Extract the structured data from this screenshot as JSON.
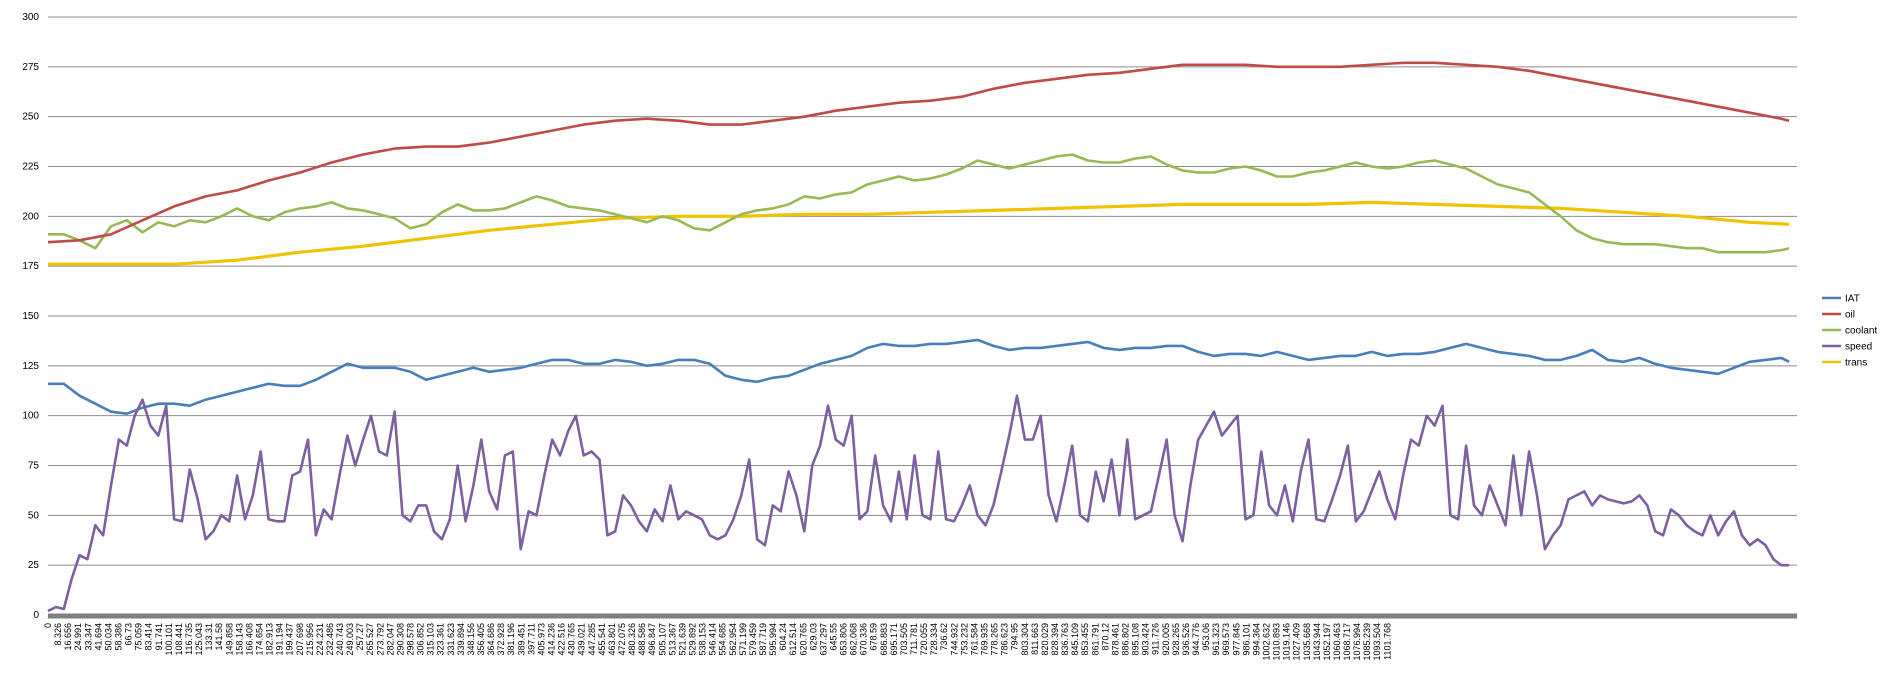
{
  "chart_data": {
    "type": "line",
    "ylim": [
      0,
      300
    ],
    "yticks": [
      "0",
      "25",
      "50",
      "75",
      "100",
      "125",
      "150",
      "175",
      "200",
      "225",
      "250",
      "275",
      "300"
    ],
    "xlim": [
      0,
      1110
    ],
    "x_tick_labels": [
      "0",
      "8.326",
      "16.656",
      "24.991",
      "33.347",
      "41.694",
      "50.034",
      "58.386",
      "66.73",
      "75.059",
      "83.414",
      "91.741",
      "100.101",
      "108.441",
      "116.735",
      "125.043",
      "133.31",
      "141.58",
      "149.858",
      "158.143",
      "166.408",
      "174.654",
      "182.913",
      "191.194",
      "199.437",
      "207.698",
      "215.956",
      "224.231",
      "232.486",
      "240.743",
      "249.003",
      "257.27",
      "265.527",
      "273.792",
      "282.047",
      "290.308",
      "298.578",
      "306.852",
      "315.103",
      "323.361",
      "331.623",
      "339.894",
      "348.156",
      "356.405",
      "364.686",
      "372.928",
      "381.196",
      "389.451",
      "397.711",
      "405.973",
      "414.236",
      "422.516",
      "430.765",
      "439.021",
      "447.285",
      "455.541",
      "463.801",
      "472.075",
      "480.326",
      "488.586",
      "496.847",
      "505.107",
      "513.367",
      "521.639",
      "529.892",
      "538.153",
      "546.414",
      "554.685",
      "562.954",
      "571.199",
      "579.459",
      "587.719",
      "595.994",
      "604.24",
      "612.514",
      "620.765",
      "629.03",
      "637.297",
      "645.55",
      "653.806",
      "662.068",
      "670.336",
      "678.59",
      "686.883",
      "695.171",
      "703.505",
      "711.781",
      "720.055",
      "728.334",
      "736.62",
      "744.932",
      "753.232",
      "761.584",
      "769.935",
      "778.265",
      "786.623",
      "794.95",
      "803.304",
      "811.663",
      "820.029",
      "828.394",
      "836.763",
      "845.109",
      "853.455",
      "861.791",
      "870.12",
      "878.461",
      "886.802",
      "895.108",
      "903.424",
      "911.726",
      "920.005",
      "928.265",
      "936.526",
      "944.776",
      "953.06",
      "961.323",
      "969.573",
      "977.845",
      "986.101",
      "994.364",
      "1002.632",
      "1010.893",
      "1019.146",
      "1027.409",
      "1035.668",
      "1043.944",
      "1052.197",
      "1060.463",
      "1068.717",
      "1076.994",
      "1085.239",
      "1093.504",
      "1101.768"
    ],
    "legend_position": "right",
    "grid": "horizontal",
    "series": [
      {
        "name": "IAT",
        "color": "#4a7ebb",
        "x": [
          0,
          10,
          20,
          30,
          40,
          50,
          60,
          70,
          80,
          90,
          100,
          110,
          120,
          130,
          140,
          150,
          160,
          170,
          180,
          190,
          200,
          210,
          220,
          230,
          240,
          250,
          260,
          270,
          280,
          290,
          300,
          310,
          320,
          330,
          340,
          350,
          360,
          370,
          380,
          390,
          400,
          410,
          420,
          430,
          440,
          450,
          460,
          470,
          480,
          490,
          500,
          510,
          520,
          530,
          540,
          550,
          560,
          570,
          580,
          590,
          600,
          610,
          620,
          630,
          640,
          650,
          660,
          670,
          680,
          690,
          700,
          710,
          720,
          730,
          740,
          750,
          760,
          770,
          780,
          790,
          800,
          810,
          820,
          830,
          840,
          850,
          860,
          870,
          880,
          890,
          900,
          910,
          920,
          930,
          940,
          950,
          960,
          970,
          980,
          990,
          1000,
          1010,
          1020,
          1030,
          1040,
          1050,
          1060,
          1070,
          1080,
          1090,
          1100,
          1105
        ],
        "values": [
          116,
          116,
          110,
          106,
          102,
          101,
          104,
          106,
          106,
          105,
          108,
          110,
          112,
          114,
          116,
          115,
          115,
          118,
          122,
          126,
          124,
          124,
          124,
          122,
          118,
          120,
          122,
          124,
          122,
          123,
          124,
          126,
          128,
          128,
          126,
          126,
          128,
          127,
          125,
          126,
          128,
          128,
          126,
          120,
          118,
          117,
          119,
          120,
          123,
          126,
          128,
          130,
          134,
          136,
          135,
          135,
          136,
          136,
          137,
          138,
          135,
          133,
          134,
          134,
          135,
          136,
          137,
          134,
          133,
          134,
          134,
          135,
          135,
          132,
          130,
          131,
          131,
          130,
          132,
          130,
          128,
          129,
          130,
          130,
          132,
          130,
          131,
          131,
          132,
          134,
          136,
          134,
          132,
          131,
          130,
          128,
          128,
          130,
          133,
          128,
          127,
          129,
          126,
          124,
          123,
          122,
          121,
          124,
          127,
          128,
          129,
          127
        ]
      },
      {
        "name": "oil",
        "color": "#be4b48",
        "x": [
          0,
          20,
          40,
          60,
          80,
          100,
          120,
          140,
          160,
          180,
          200,
          220,
          240,
          260,
          280,
          300,
          320,
          340,
          360,
          380,
          400,
          420,
          440,
          460,
          480,
          500,
          520,
          540,
          560,
          580,
          600,
          620,
          640,
          660,
          680,
          700,
          720,
          740,
          760,
          780,
          800,
          820,
          840,
          860,
          880,
          900,
          920,
          940,
          960,
          980,
          1000,
          1020,
          1040,
          1060,
          1080,
          1100,
          1105
        ],
        "values": [
          187,
          188,
          191,
          198,
          205,
          210,
          213,
          218,
          222,
          227,
          231,
          234,
          235,
          235,
          237,
          240,
          243,
          246,
          248,
          249,
          248,
          246,
          246,
          248,
          250,
          253,
          255,
          257,
          258,
          260,
          264,
          267,
          269,
          271,
          272,
          274,
          276,
          276,
          276,
          275,
          275,
          275,
          276,
          277,
          277,
          276,
          275,
          273,
          270,
          267,
          264,
          261,
          258,
          255,
          252,
          249,
          248
        ]
      },
      {
        "name": "coolant",
        "color": "#98b954",
        "x": [
          0,
          10,
          20,
          30,
          40,
          50,
          60,
          70,
          80,
          90,
          100,
          110,
          120,
          130,
          140,
          150,
          160,
          170,
          180,
          190,
          200,
          210,
          220,
          230,
          240,
          250,
          260,
          270,
          280,
          290,
          300,
          310,
          320,
          330,
          340,
          350,
          360,
          370,
          380,
          390,
          400,
          410,
          420,
          430,
          440,
          450,
          460,
          470,
          480,
          490,
          500,
          510,
          520,
          530,
          540,
          550,
          560,
          570,
          580,
          590,
          600,
          610,
          620,
          630,
          640,
          650,
          660,
          670,
          680,
          690,
          700,
          710,
          720,
          730,
          740,
          750,
          760,
          770,
          780,
          790,
          800,
          810,
          820,
          830,
          840,
          850,
          860,
          870,
          880,
          890,
          900,
          910,
          920,
          930,
          940,
          950,
          960,
          970,
          980,
          990,
          1000,
          1010,
          1020,
          1030,
          1040,
          1050,
          1060,
          1070,
          1080,
          1090,
          1100,
          1105
        ],
        "values": [
          191,
          191,
          188,
          184,
          195,
          198,
          192,
          197,
          195,
          198,
          197,
          200,
          204,
          200,
          198,
          202,
          204,
          205,
          207,
          204,
          203,
          201,
          199,
          194,
          196,
          202,
          206,
          203,
          203,
          204,
          207,
          210,
          208,
          205,
          204,
          203,
          201,
          199,
          197,
          200,
          198,
          194,
          193,
          197,
          201,
          203,
          204,
          206,
          210,
          209,
          211,
          212,
          216,
          218,
          220,
          218,
          219,
          221,
          224,
          228,
          226,
          224,
          226,
          228,
          230,
          231,
          228,
          227,
          227,
          229,
          230,
          226,
          223,
          222,
          222,
          224,
          225,
          223,
          220,
          220,
          222,
          223,
          225,
          227,
          225,
          224,
          225,
          227,
          228,
          226,
          224,
          220,
          216,
          214,
          212,
          206,
          200,
          193,
          189,
          187,
          186,
          186,
          186,
          185,
          184,
          184,
          182,
          182,
          182,
          182,
          183,
          184
        ]
      },
      {
        "name": "speed",
        "color": "#7d60a0",
        "x": [
          0,
          5,
          10,
          15,
          20,
          25,
          30,
          35,
          40,
          45,
          50,
          55,
          60,
          65,
          70,
          75,
          80,
          85,
          90,
          95,
          100,
          105,
          110,
          115,
          120,
          125,
          130,
          135,
          140,
          145,
          150,
          155,
          160,
          165,
          170,
          175,
          180,
          185,
          190,
          195,
          200,
          205,
          210,
          215,
          220,
          225,
          230,
          235,
          240,
          245,
          250,
          255,
          260,
          265,
          270,
          275,
          280,
          285,
          290,
          295,
          300,
          305,
          310,
          315,
          320,
          325,
          330,
          335,
          340,
          345,
          350,
          355,
          360,
          365,
          370,
          375,
          380,
          385,
          390,
          395,
          400,
          405,
          410,
          415,
          420,
          425,
          430,
          435,
          440,
          445,
          450,
          455,
          460,
          465,
          470,
          475,
          480,
          485,
          490,
          495,
          500,
          505,
          510,
          515,
          520,
          525,
          530,
          535,
          540,
          545,
          550,
          555,
          560,
          565,
          570,
          575,
          580,
          585,
          590,
          595,
          600,
          605,
          610,
          615,
          620,
          625,
          630,
          635,
          640,
          645,
          650,
          655,
          660,
          665,
          670,
          675,
          680,
          685,
          690,
          695,
          700,
          705,
          710,
          715,
          720,
          725,
          730,
          735,
          740,
          745,
          750,
          755,
          760,
          765,
          770,
          775,
          780,
          785,
          790,
          795,
          800,
          805,
          810,
          815,
          820,
          825,
          830,
          835,
          840,
          845,
          850,
          855,
          860,
          865,
          870,
          875,
          880,
          885,
          890,
          895,
          900,
          905,
          910,
          915,
          920,
          925,
          930,
          935,
          940,
          945,
          950,
          955,
          960,
          965,
          970,
          975,
          980,
          985,
          990,
          995,
          1000,
          1005,
          1010,
          1015,
          1020,
          1025,
          1030,
          1035,
          1040,
          1045,
          1050,
          1055,
          1060,
          1065,
          1070,
          1075,
          1080,
          1085,
          1090,
          1095,
          1100,
          1105
        ],
        "values": [
          2,
          4,
          3,
          18,
          30,
          28,
          45,
          40,
          65,
          88,
          85,
          100,
          108,
          95,
          90,
          105,
          48,
          47,
          73,
          58,
          38,
          42,
          50,
          47,
          70,
          48,
          60,
          82,
          48,
          47,
          47,
          70,
          72,
          88,
          40,
          53,
          48,
          70,
          90,
          75,
          88,
          100,
          82,
          80,
          102,
          50,
          47,
          55,
          55,
          42,
          38,
          48,
          75,
          47,
          65,
          88,
          62,
          53,
          80,
          82,
          33,
          52,
          50,
          70,
          88,
          80,
          92,
          100,
          80,
          82,
          78,
          40,
          42,
          60,
          55,
          47,
          42,
          53,
          47,
          65,
          48,
          52,
          50,
          48,
          40,
          38,
          40,
          48,
          60,
          78,
          38,
          35,
          55,
          52,
          72,
          60,
          42,
          75,
          85,
          105,
          88,
          85,
          100,
          48,
          52,
          80,
          55,
          47,
          72,
          48,
          80,
          50,
          48,
          82,
          48,
          47,
          55,
          65,
          50,
          45,
          55,
          72,
          90,
          110,
          88,
          88,
          100,
          60,
          47,
          65,
          85,
          50,
          47,
          72,
          57,
          78,
          50,
          88,
          48,
          50,
          52,
          70,
          88,
          50,
          37,
          65,
          88,
          95,
          102,
          90,
          95,
          100,
          48,
          50,
          82,
          55,
          50,
          65,
          47,
          72,
          88,
          48,
          47,
          58,
          70,
          85,
          47,
          52,
          62,
          72,
          58,
          48,
          70,
          88,
          85,
          100,
          95,
          105,
          50,
          48,
          85,
          55,
          50,
          65,
          55,
          45,
          80,
          50,
          82,
          60,
          33,
          40,
          45,
          58,
          60,
          62,
          55,
          60,
          58,
          57,
          56,
          57,
          60,
          55,
          42,
          40,
          53,
          50,
          45,
          42,
          40,
          50,
          40,
          47,
          52,
          40,
          35,
          38,
          35,
          28,
          25,
          25
        ]
      },
      {
        "name": "trans",
        "color": "#f0c300",
        "x": [
          0,
          40,
          80,
          120,
          160,
          200,
          240,
          280,
          320,
          360,
          400,
          440,
          480,
          520,
          560,
          600,
          640,
          680,
          720,
          760,
          800,
          840,
          880,
          920,
          960,
          1000,
          1040,
          1080,
          1105
        ],
        "values": [
          176,
          176,
          176,
          178,
          182,
          185,
          189,
          193,
          196,
          199,
          200,
          200,
          201,
          201,
          202,
          203,
          204,
          205,
          206,
          206,
          206,
          207,
          206,
          205,
          204,
          202,
          200,
          197,
          196
        ]
      }
    ]
  }
}
